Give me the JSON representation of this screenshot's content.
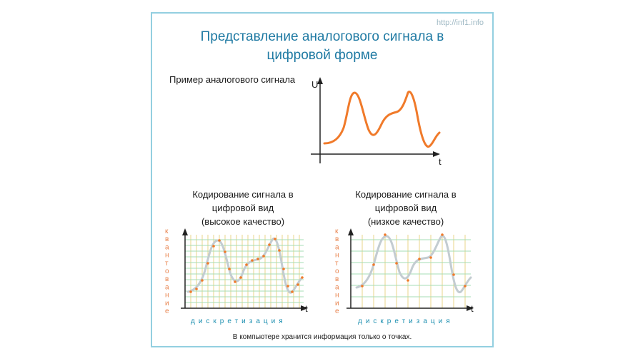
{
  "url": "http://inf1.info",
  "title_line1": "Представление аналогового сигнала в",
  "title_line2": "цифровой форме",
  "example_label": "Пример аналогового сигнала",
  "axis_u": "U",
  "axis_t": "t",
  "high_quality": {
    "line1": "Кодирование сигнала в",
    "line2": "цифровой вид",
    "line3": "(высокое качество)"
  },
  "low_quality": {
    "line1": "Кодирование сигнала в",
    "line2": "цифровой вид",
    "line3": "(низкое качество)"
  },
  "quantization_label": "квантование",
  "discretization_label": "дискретизация",
  "footer": "В компьютере хранится информация только о точках.",
  "colors": {
    "signal": "#f07a2a",
    "frame": "#93cfe0",
    "title": "#1f7aa3",
    "grid_v": "#e9d48a",
    "grid_h": "#a6dcb4",
    "digital_curve": "#c3ccd1",
    "points": "#f07a2a",
    "discretization": "#1c8fb0",
    "quantization": "#e8844f"
  }
}
